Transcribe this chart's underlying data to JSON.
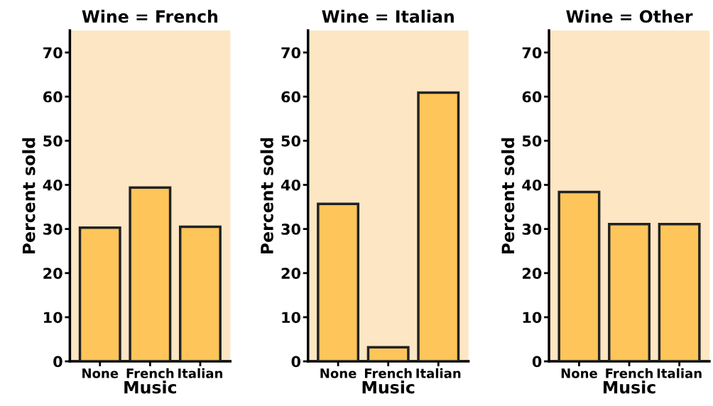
{
  "chart_data": [
    {
      "type": "bar",
      "title": "Wine = French",
      "xlabel": "Music",
      "ylabel": "Percent sold",
      "categories": [
        "None",
        "French",
        "Italian"
      ],
      "values": [
        30.3,
        39.4,
        30.5
      ],
      "color": "#fdc55a",
      "ylim": [
        0,
        75
      ],
      "yticks": [
        0,
        10,
        20,
        30,
        40,
        50,
        60,
        70
      ],
      "grid": false
    },
    {
      "type": "bar",
      "title": "Wine = Italian",
      "xlabel": "Music",
      "ylabel": "Percent sold",
      "categories": [
        "None",
        "French",
        "Italian"
      ],
      "values": [
        35.7,
        3.2,
        60.9
      ],
      "color": "#fdc55a",
      "ylim": [
        0,
        75
      ],
      "yticks": [
        0,
        10,
        20,
        30,
        40,
        50,
        60,
        70
      ],
      "grid": false
    },
    {
      "type": "bar",
      "title": "Wine = Other",
      "xlabel": "Music",
      "ylabel": "Percent sold",
      "categories": [
        "None",
        "French",
        "Italian"
      ],
      "values": [
        38.4,
        31.1,
        31.1
      ],
      "color": "#fdc55a",
      "ylim": [
        0,
        75
      ],
      "yticks": [
        0,
        10,
        20,
        30,
        40,
        50,
        60,
        70
      ],
      "grid": false
    }
  ]
}
